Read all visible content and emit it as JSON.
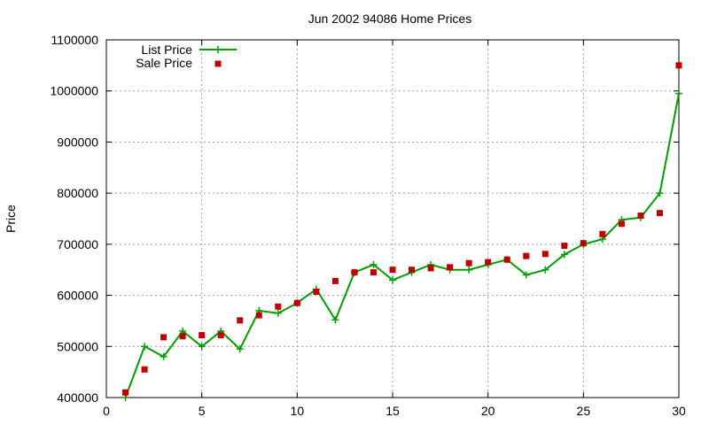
{
  "chart_data": {
    "type": "line",
    "title": "Jun 2002 94086 Home Prices",
    "xlabel": "",
    "ylabel": "Price",
    "xlim": [
      0,
      30
    ],
    "ylim": [
      400000,
      1100000
    ],
    "x_ticks": [
      0,
      5,
      10,
      15,
      20,
      25,
      30
    ],
    "y_ticks": [
      400000,
      500000,
      600000,
      700000,
      800000,
      900000,
      1000000,
      1100000
    ],
    "grid": true,
    "legend_position": "top-left",
    "series": [
      {
        "name": "List Price",
        "style": "line+cross",
        "color": "#00a000",
        "x": [
          1,
          2,
          3,
          4,
          5,
          6,
          7,
          8,
          9,
          10,
          11,
          12,
          13,
          14,
          15,
          16,
          17,
          18,
          19,
          20,
          21,
          22,
          23,
          24,
          25,
          26,
          27,
          28,
          29,
          30
        ],
        "y": [
          400000,
          500000,
          480000,
          530000,
          500000,
          530000,
          495000,
          570000,
          565000,
          585000,
          612000,
          552000,
          645000,
          660000,
          630000,
          645000,
          660000,
          650000,
          650000,
          660000,
          670000,
          640000,
          650000,
          680000,
          700000,
          710000,
          748000,
          752000,
          800000,
          995000
        ]
      },
      {
        "name": "Sale Price",
        "style": "square",
        "color": "#c00000",
        "x": [
          1,
          2,
          3,
          4,
          5,
          6,
          7,
          8,
          9,
          10,
          11,
          12,
          13,
          14,
          15,
          16,
          17,
          18,
          19,
          20,
          21,
          22,
          23,
          24,
          25,
          26,
          27,
          28,
          29,
          30
        ],
        "y": [
          410000,
          455000,
          518000,
          520000,
          522000,
          522000,
          551000,
          561000,
          578000,
          585000,
          607000,
          628000,
          645000,
          645000,
          650000,
          650000,
          653000,
          655000,
          663000,
          665000,
          670000,
          677000,
          681000,
          697000,
          702000,
          720000,
          740000,
          756000,
          761000,
          1050000
        ]
      }
    ]
  }
}
